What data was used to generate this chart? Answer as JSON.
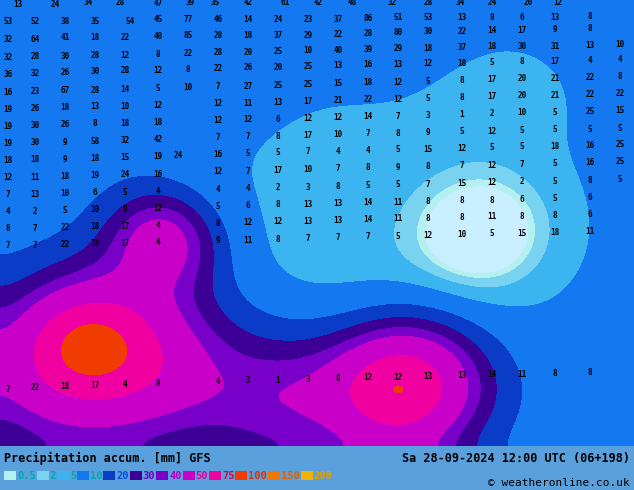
{
  "title_left": "Precipitation accum. [mm] GFS",
  "title_right": "Sa 28-09-2024 12:00 UTC (06+198)",
  "copyright": "© weatheronline.co.uk",
  "legend_values": [
    "0.5",
    "2",
    "5",
    "10",
    "20",
    "30",
    "40",
    "50",
    "75",
    "100",
    "150",
    "200"
  ],
  "legend_colors": [
    "#b4f0f0",
    "#78d2f0",
    "#3cb4f0",
    "#1478f0",
    "#0a3cc8",
    "#3c0096",
    "#7800c8",
    "#c800c8",
    "#f000a0",
    "#f03c00",
    "#f07800",
    "#f0b400"
  ],
  "precip_colors": [
    "#c8eeff",
    "#b4f0f0",
    "#78d2f0",
    "#3cb4f0",
    "#1478f0",
    "#0a3cc8",
    "#3c0096",
    "#7800c8",
    "#c800c8",
    "#f000a0",
    "#f03c00",
    "#f07800",
    "#f0f000"
  ],
  "boundaries": [
    0,
    0.5,
    2,
    5,
    10,
    20,
    30,
    40,
    50,
    75,
    100,
    150,
    200
  ],
  "bg_color": "#5aa0dc",
  "bottom_bar_color": "#c8f0f0",
  "fig_width": 6.34,
  "fig_height": 4.9,
  "dpi": 100,
  "numbers": [
    [
      18,
      5,
      "13"
    ],
    [
      55,
      5,
      "24"
    ],
    [
      88,
      3,
      "34"
    ],
    [
      120,
      3,
      "28"
    ],
    [
      158,
      4,
      "47"
    ],
    [
      190,
      3,
      "39"
    ],
    [
      215,
      3,
      "35"
    ],
    [
      248,
      3,
      "42"
    ],
    [
      285,
      3,
      "61"
    ],
    [
      318,
      3,
      "42"
    ],
    [
      352,
      3,
      "48"
    ],
    [
      392,
      3,
      "32"
    ],
    [
      428,
      3,
      "28"
    ],
    [
      460,
      3,
      "34"
    ],
    [
      492,
      3,
      "24"
    ],
    [
      528,
      3,
      "20"
    ],
    [
      558,
      3,
      "12"
    ],
    [
      8,
      22,
      "53"
    ],
    [
      35,
      22,
      "52"
    ],
    [
      65,
      22,
      "38"
    ],
    [
      95,
      22,
      "35"
    ],
    [
      130,
      22,
      "54"
    ],
    [
      158,
      20,
      "45"
    ],
    [
      188,
      20,
      "77"
    ],
    [
      218,
      20,
      "46"
    ],
    [
      248,
      20,
      "14"
    ],
    [
      278,
      20,
      "24"
    ],
    [
      308,
      20,
      "23"
    ],
    [
      338,
      20,
      "37"
    ],
    [
      368,
      19,
      "86"
    ],
    [
      398,
      18,
      "51"
    ],
    [
      428,
      18,
      "53"
    ],
    [
      462,
      18,
      "13"
    ],
    [
      492,
      18,
      "8"
    ],
    [
      522,
      18,
      "6"
    ],
    [
      555,
      18,
      "13"
    ],
    [
      590,
      17,
      "8"
    ],
    [
      8,
      40,
      "32"
    ],
    [
      35,
      40,
      "64"
    ],
    [
      65,
      38,
      "41"
    ],
    [
      95,
      38,
      "18"
    ],
    [
      125,
      38,
      "22"
    ],
    [
      158,
      37,
      "40"
    ],
    [
      188,
      36,
      "85"
    ],
    [
      218,
      36,
      "28"
    ],
    [
      248,
      36,
      "18"
    ],
    [
      278,
      36,
      "37"
    ],
    [
      308,
      36,
      "29"
    ],
    [
      338,
      35,
      "22"
    ],
    [
      368,
      34,
      "28"
    ],
    [
      398,
      33,
      "80"
    ],
    [
      428,
      32,
      "30"
    ],
    [
      462,
      32,
      "22"
    ],
    [
      492,
      31,
      "14"
    ],
    [
      522,
      31,
      "17"
    ],
    [
      555,
      30,
      "9"
    ],
    [
      590,
      29,
      "8"
    ],
    [
      8,
      58,
      "32"
    ],
    [
      35,
      57,
      "28"
    ],
    [
      65,
      57,
      "30"
    ],
    [
      95,
      56,
      "28"
    ],
    [
      125,
      56,
      "12"
    ],
    [
      158,
      55,
      "8"
    ],
    [
      188,
      54,
      "22"
    ],
    [
      218,
      53,
      "28"
    ],
    [
      248,
      53,
      "20"
    ],
    [
      278,
      52,
      "25"
    ],
    [
      308,
      51,
      "10"
    ],
    [
      338,
      51,
      "40"
    ],
    [
      368,
      50,
      "39"
    ],
    [
      398,
      49,
      "29"
    ],
    [
      428,
      49,
      "18"
    ],
    [
      462,
      48,
      "37"
    ],
    [
      492,
      47,
      "18"
    ],
    [
      522,
      47,
      "30"
    ],
    [
      555,
      47,
      "31"
    ],
    [
      590,
      46,
      "13"
    ],
    [
      620,
      45,
      "10"
    ],
    [
      8,
      75,
      "36"
    ],
    [
      35,
      74,
      "32"
    ],
    [
      65,
      73,
      "26"
    ],
    [
      95,
      72,
      "30"
    ],
    [
      125,
      71,
      "28"
    ],
    [
      158,
      71,
      "12"
    ],
    [
      188,
      70,
      "8"
    ],
    [
      218,
      69,
      "22"
    ],
    [
      248,
      68,
      "26"
    ],
    [
      278,
      68,
      "20"
    ],
    [
      308,
      67,
      "25"
    ],
    [
      338,
      66,
      "13"
    ],
    [
      368,
      65,
      "16"
    ],
    [
      398,
      65,
      "13"
    ],
    [
      428,
      64,
      "12"
    ],
    [
      462,
      64,
      "18"
    ],
    [
      492,
      63,
      "5"
    ],
    [
      522,
      62,
      "8"
    ],
    [
      555,
      62,
      "17"
    ],
    [
      590,
      61,
      "4"
    ],
    [
      620,
      60,
      "4"
    ],
    [
      8,
      93,
      "16"
    ],
    [
      35,
      92,
      "23"
    ],
    [
      65,
      91,
      "67"
    ],
    [
      95,
      91,
      "28"
    ],
    [
      125,
      90,
      "14"
    ],
    [
      158,
      89,
      "5"
    ],
    [
      188,
      88,
      "10"
    ],
    [
      218,
      87,
      "7"
    ],
    [
      248,
      87,
      "27"
    ],
    [
      278,
      86,
      "25"
    ],
    [
      308,
      85,
      "25"
    ],
    [
      338,
      84,
      "15"
    ],
    [
      368,
      83,
      "18"
    ],
    [
      398,
      83,
      "12"
    ],
    [
      428,
      82,
      "5"
    ],
    [
      462,
      81,
      "8"
    ],
    [
      492,
      80,
      "17"
    ],
    [
      522,
      79,
      "20"
    ],
    [
      555,
      79,
      "21"
    ],
    [
      590,
      78,
      "22"
    ],
    [
      620,
      77,
      "8"
    ],
    [
      8,
      110,
      "19"
    ],
    [
      35,
      109,
      "26"
    ],
    [
      65,
      108,
      "18"
    ],
    [
      95,
      107,
      "13"
    ],
    [
      125,
      107,
      "10"
    ],
    [
      158,
      106,
      "12"
    ],
    [
      218,
      104,
      "12"
    ],
    [
      248,
      104,
      "11"
    ],
    [
      278,
      103,
      "13"
    ],
    [
      308,
      102,
      "17"
    ],
    [
      338,
      101,
      "21"
    ],
    [
      368,
      100,
      "22"
    ],
    [
      398,
      100,
      "12"
    ],
    [
      428,
      99,
      "5"
    ],
    [
      462,
      98,
      "8"
    ],
    [
      492,
      97,
      "17"
    ],
    [
      522,
      96,
      "20"
    ],
    [
      555,
      96,
      "21"
    ],
    [
      590,
      95,
      "22"
    ],
    [
      620,
      94,
      "22"
    ],
    [
      8,
      127,
      "19"
    ],
    [
      35,
      126,
      "30"
    ],
    [
      65,
      125,
      "26"
    ],
    [
      95,
      124,
      "8"
    ],
    [
      125,
      124,
      "18"
    ],
    [
      158,
      123,
      "18"
    ],
    [
      218,
      121,
      "12"
    ],
    [
      248,
      120,
      "12"
    ],
    [
      278,
      120,
      "6"
    ],
    [
      308,
      119,
      "12"
    ],
    [
      338,
      118,
      "12"
    ],
    [
      368,
      117,
      "14"
    ],
    [
      398,
      117,
      "7"
    ],
    [
      428,
      116,
      "3"
    ],
    [
      462,
      115,
      "1"
    ],
    [
      492,
      114,
      "2"
    ],
    [
      522,
      113,
      "10"
    ],
    [
      555,
      113,
      "5"
    ],
    [
      590,
      112,
      "25"
    ],
    [
      620,
      111,
      "15"
    ],
    [
      8,
      144,
      "19"
    ],
    [
      35,
      143,
      "30"
    ],
    [
      65,
      143,
      "9"
    ],
    [
      95,
      142,
      "58"
    ],
    [
      125,
      141,
      "32"
    ],
    [
      158,
      140,
      "42"
    ],
    [
      218,
      138,
      "7"
    ],
    [
      248,
      137,
      "7"
    ],
    [
      278,
      137,
      "8"
    ],
    [
      308,
      136,
      "17"
    ],
    [
      338,
      135,
      "10"
    ],
    [
      368,
      134,
      "7"
    ],
    [
      398,
      134,
      "8"
    ],
    [
      428,
      133,
      "9"
    ],
    [
      462,
      132,
      "5"
    ],
    [
      492,
      132,
      "12"
    ],
    [
      522,
      131,
      "5"
    ],
    [
      555,
      130,
      "5"
    ],
    [
      590,
      130,
      "5"
    ],
    [
      620,
      129,
      "5"
    ],
    [
      8,
      161,
      "18"
    ],
    [
      35,
      160,
      "18"
    ],
    [
      65,
      160,
      "9"
    ],
    [
      95,
      159,
      "18"
    ],
    [
      125,
      158,
      "15"
    ],
    [
      158,
      157,
      "19"
    ],
    [
      178,
      156,
      "24"
    ],
    [
      218,
      155,
      "16"
    ],
    [
      248,
      154,
      "5"
    ],
    [
      278,
      153,
      "5"
    ],
    [
      308,
      152,
      "7"
    ],
    [
      338,
      152,
      "4"
    ],
    [
      368,
      151,
      "4"
    ],
    [
      398,
      150,
      "5"
    ],
    [
      428,
      150,
      "15"
    ],
    [
      462,
      149,
      "12"
    ],
    [
      492,
      148,
      "5"
    ],
    [
      522,
      147,
      "5"
    ],
    [
      555,
      147,
      "18"
    ],
    [
      590,
      146,
      "16"
    ],
    [
      620,
      145,
      "25"
    ],
    [
      8,
      178,
      "12"
    ],
    [
      35,
      178,
      "11"
    ],
    [
      65,
      177,
      "18"
    ],
    [
      95,
      176,
      "19"
    ],
    [
      125,
      175,
      "24"
    ],
    [
      158,
      175,
      "16"
    ],
    [
      218,
      172,
      "12"
    ],
    [
      248,
      172,
      "7"
    ],
    [
      278,
      171,
      "17"
    ],
    [
      308,
      170,
      "10"
    ],
    [
      338,
      169,
      "7"
    ],
    [
      368,
      168,
      "8"
    ],
    [
      398,
      168,
      "9"
    ],
    [
      428,
      167,
      "8"
    ],
    [
      462,
      166,
      "7"
    ],
    [
      492,
      166,
      "12"
    ],
    [
      522,
      165,
      "7"
    ],
    [
      555,
      164,
      "5"
    ],
    [
      590,
      163,
      "16"
    ],
    [
      620,
      162,
      "25"
    ],
    [
      8,
      195,
      "7"
    ],
    [
      35,
      195,
      "13"
    ],
    [
      65,
      194,
      "10"
    ],
    [
      95,
      193,
      "6"
    ],
    [
      125,
      193,
      "5"
    ],
    [
      158,
      192,
      "4"
    ],
    [
      218,
      190,
      "4"
    ],
    [
      248,
      189,
      "4"
    ],
    [
      278,
      188,
      "2"
    ],
    [
      308,
      188,
      "3"
    ],
    [
      338,
      187,
      "8"
    ],
    [
      368,
      186,
      "5"
    ],
    [
      398,
      185,
      "5"
    ],
    [
      428,
      185,
      "7"
    ],
    [
      462,
      184,
      "15"
    ],
    [
      492,
      183,
      "12"
    ],
    [
      522,
      182,
      "2"
    ],
    [
      555,
      182,
      "5"
    ],
    [
      590,
      181,
      "8"
    ],
    [
      620,
      180,
      "5"
    ],
    [
      8,
      212,
      "4"
    ],
    [
      35,
      212,
      "2"
    ],
    [
      65,
      211,
      "5"
    ],
    [
      95,
      210,
      "10"
    ],
    [
      125,
      210,
      "8"
    ],
    [
      158,
      209,
      "12"
    ],
    [
      218,
      207,
      "5"
    ],
    [
      248,
      206,
      "6"
    ],
    [
      278,
      205,
      "8"
    ],
    [
      308,
      205,
      "13"
    ],
    [
      338,
      204,
      "13"
    ],
    [
      368,
      203,
      "14"
    ],
    [
      398,
      203,
      "11"
    ],
    [
      428,
      202,
      "8"
    ],
    [
      462,
      201,
      "8"
    ],
    [
      492,
      201,
      "8"
    ],
    [
      522,
      200,
      "6"
    ],
    [
      555,
      199,
      "5"
    ],
    [
      590,
      198,
      "6"
    ],
    [
      8,
      229,
      "8"
    ],
    [
      35,
      229,
      "7"
    ],
    [
      65,
      228,
      "22"
    ],
    [
      95,
      227,
      "18"
    ],
    [
      125,
      227,
      "17"
    ],
    [
      158,
      226,
      "4"
    ],
    [
      218,
      224,
      "8"
    ],
    [
      248,
      223,
      "12"
    ],
    [
      278,
      222,
      "12"
    ],
    [
      308,
      222,
      "13"
    ],
    [
      338,
      221,
      "13"
    ],
    [
      368,
      220,
      "14"
    ],
    [
      398,
      219,
      "11"
    ],
    [
      428,
      219,
      "8"
    ],
    [
      462,
      218,
      "8"
    ],
    [
      492,
      217,
      "11"
    ],
    [
      522,
      217,
      "8"
    ],
    [
      555,
      216,
      "8"
    ],
    [
      590,
      215,
      "6"
    ],
    [
      8,
      246,
      "7"
    ],
    [
      35,
      246,
      "7"
    ],
    [
      65,
      245,
      "22"
    ],
    [
      95,
      244,
      "18"
    ],
    [
      125,
      244,
      "17"
    ],
    [
      158,
      243,
      "4"
    ],
    [
      218,
      241,
      "9"
    ],
    [
      248,
      241,
      "11"
    ],
    [
      278,
      240,
      "8"
    ],
    [
      308,
      239,
      "7"
    ],
    [
      338,
      238,
      "7"
    ],
    [
      368,
      237,
      "7"
    ],
    [
      398,
      237,
      "5"
    ],
    [
      428,
      236,
      "12"
    ],
    [
      462,
      235,
      "10"
    ],
    [
      492,
      234,
      "5"
    ],
    [
      522,
      234,
      "15"
    ],
    [
      555,
      233,
      "18"
    ],
    [
      590,
      232,
      "11"
    ],
    [
      8,
      390,
      "7"
    ],
    [
      35,
      388,
      "22"
    ],
    [
      65,
      387,
      "18"
    ],
    [
      95,
      386,
      "17"
    ],
    [
      125,
      385,
      "4"
    ],
    [
      158,
      384,
      "8"
    ],
    [
      218,
      382,
      "4"
    ],
    [
      248,
      381,
      "3"
    ],
    [
      278,
      381,
      "1"
    ],
    [
      308,
      380,
      "3"
    ],
    [
      338,
      379,
      "8"
    ],
    [
      368,
      378,
      "12"
    ],
    [
      398,
      378,
      "12"
    ],
    [
      428,
      377,
      "13"
    ],
    [
      462,
      376,
      "13"
    ],
    [
      492,
      375,
      "14"
    ],
    [
      522,
      375,
      "11"
    ],
    [
      555,
      374,
      "8"
    ],
    [
      590,
      373,
      "8"
    ]
  ],
  "border_color": "#8b5a2b",
  "coast_color": "#c08040"
}
